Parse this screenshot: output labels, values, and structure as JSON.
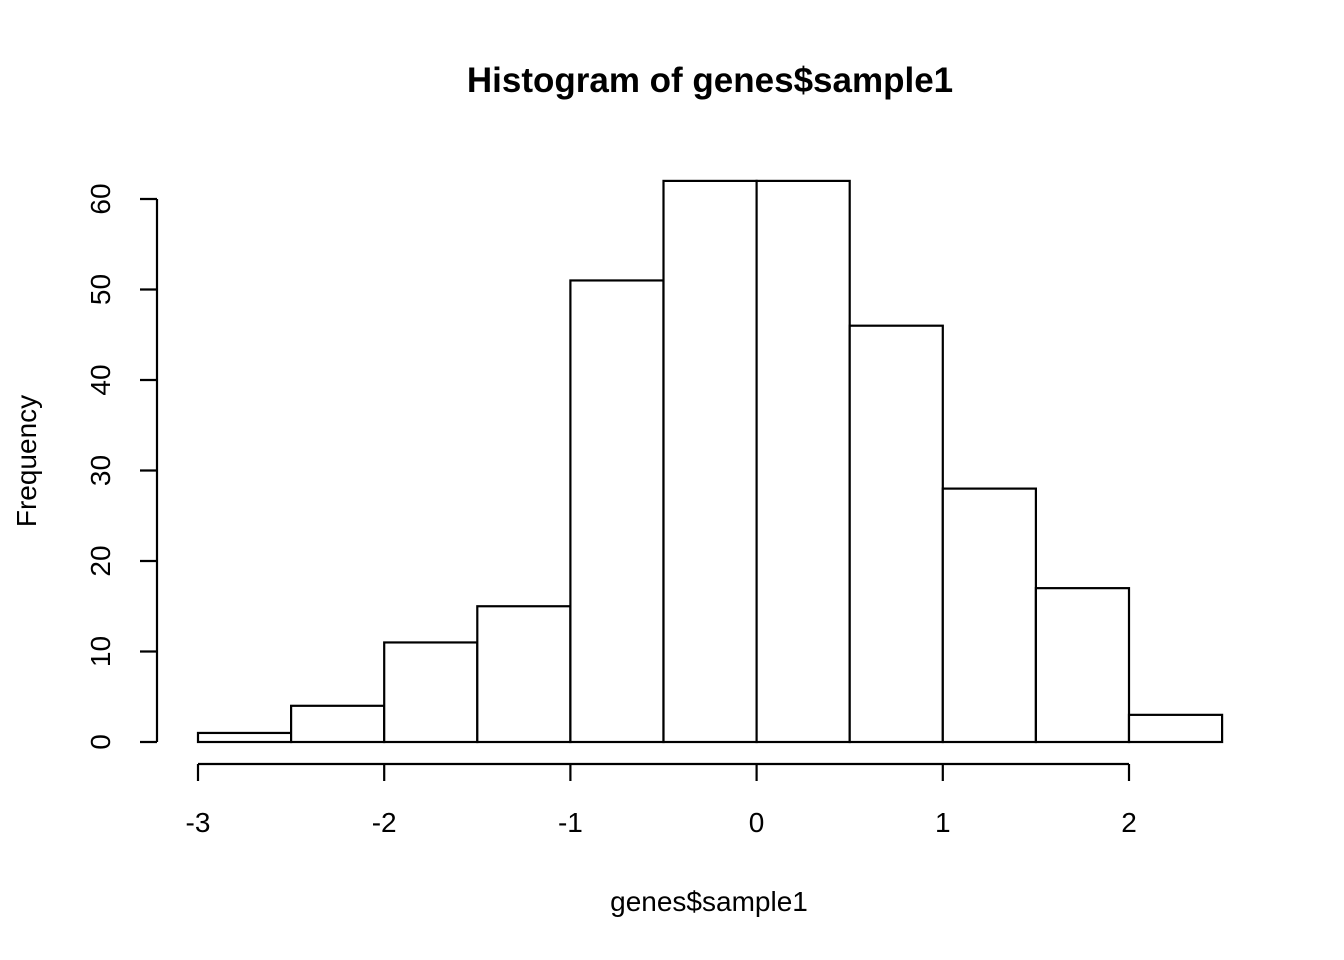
{
  "chart_data": {
    "type": "bar",
    "title": "Histogram of genes$sample1",
    "xlabel": "genes$sample1",
    "ylabel": "Frequency",
    "bins": [
      {
        "start": -3.0,
        "end": -2.5,
        "count": 1
      },
      {
        "start": -2.5,
        "end": -2.0,
        "count": 4
      },
      {
        "start": -2.0,
        "end": -1.5,
        "count": 11
      },
      {
        "start": -1.5,
        "end": -1.0,
        "count": 15
      },
      {
        "start": -1.0,
        "end": -0.5,
        "count": 51
      },
      {
        "start": -0.5,
        "end": 0.0,
        "count": 62
      },
      {
        "start": 0.0,
        "end": 0.5,
        "count": 62
      },
      {
        "start": 0.5,
        "end": 1.0,
        "count": 46
      },
      {
        "start": 1.0,
        "end": 1.5,
        "count": 28
      },
      {
        "start": 1.5,
        "end": 2.0,
        "count": 17
      },
      {
        "start": 2.0,
        "end": 2.5,
        "count": 3
      }
    ],
    "xticks": [
      -3,
      -2,
      -1,
      0,
      1,
      2
    ],
    "xtick_labels": [
      "-3",
      "-2",
      "-1",
      "0",
      "1",
      "2"
    ],
    "yticks": [
      0,
      10,
      20,
      30,
      40,
      50,
      60
    ],
    "ytick_labels": [
      "0",
      "10",
      "20",
      "30",
      "40",
      "50",
      "60"
    ],
    "xlim": [
      -3,
      2.5
    ],
    "ylim": [
      0,
      60
    ],
    "grid": false,
    "colors": {
      "bar_fill": "#ffffff",
      "bar_stroke": "#000000"
    }
  }
}
